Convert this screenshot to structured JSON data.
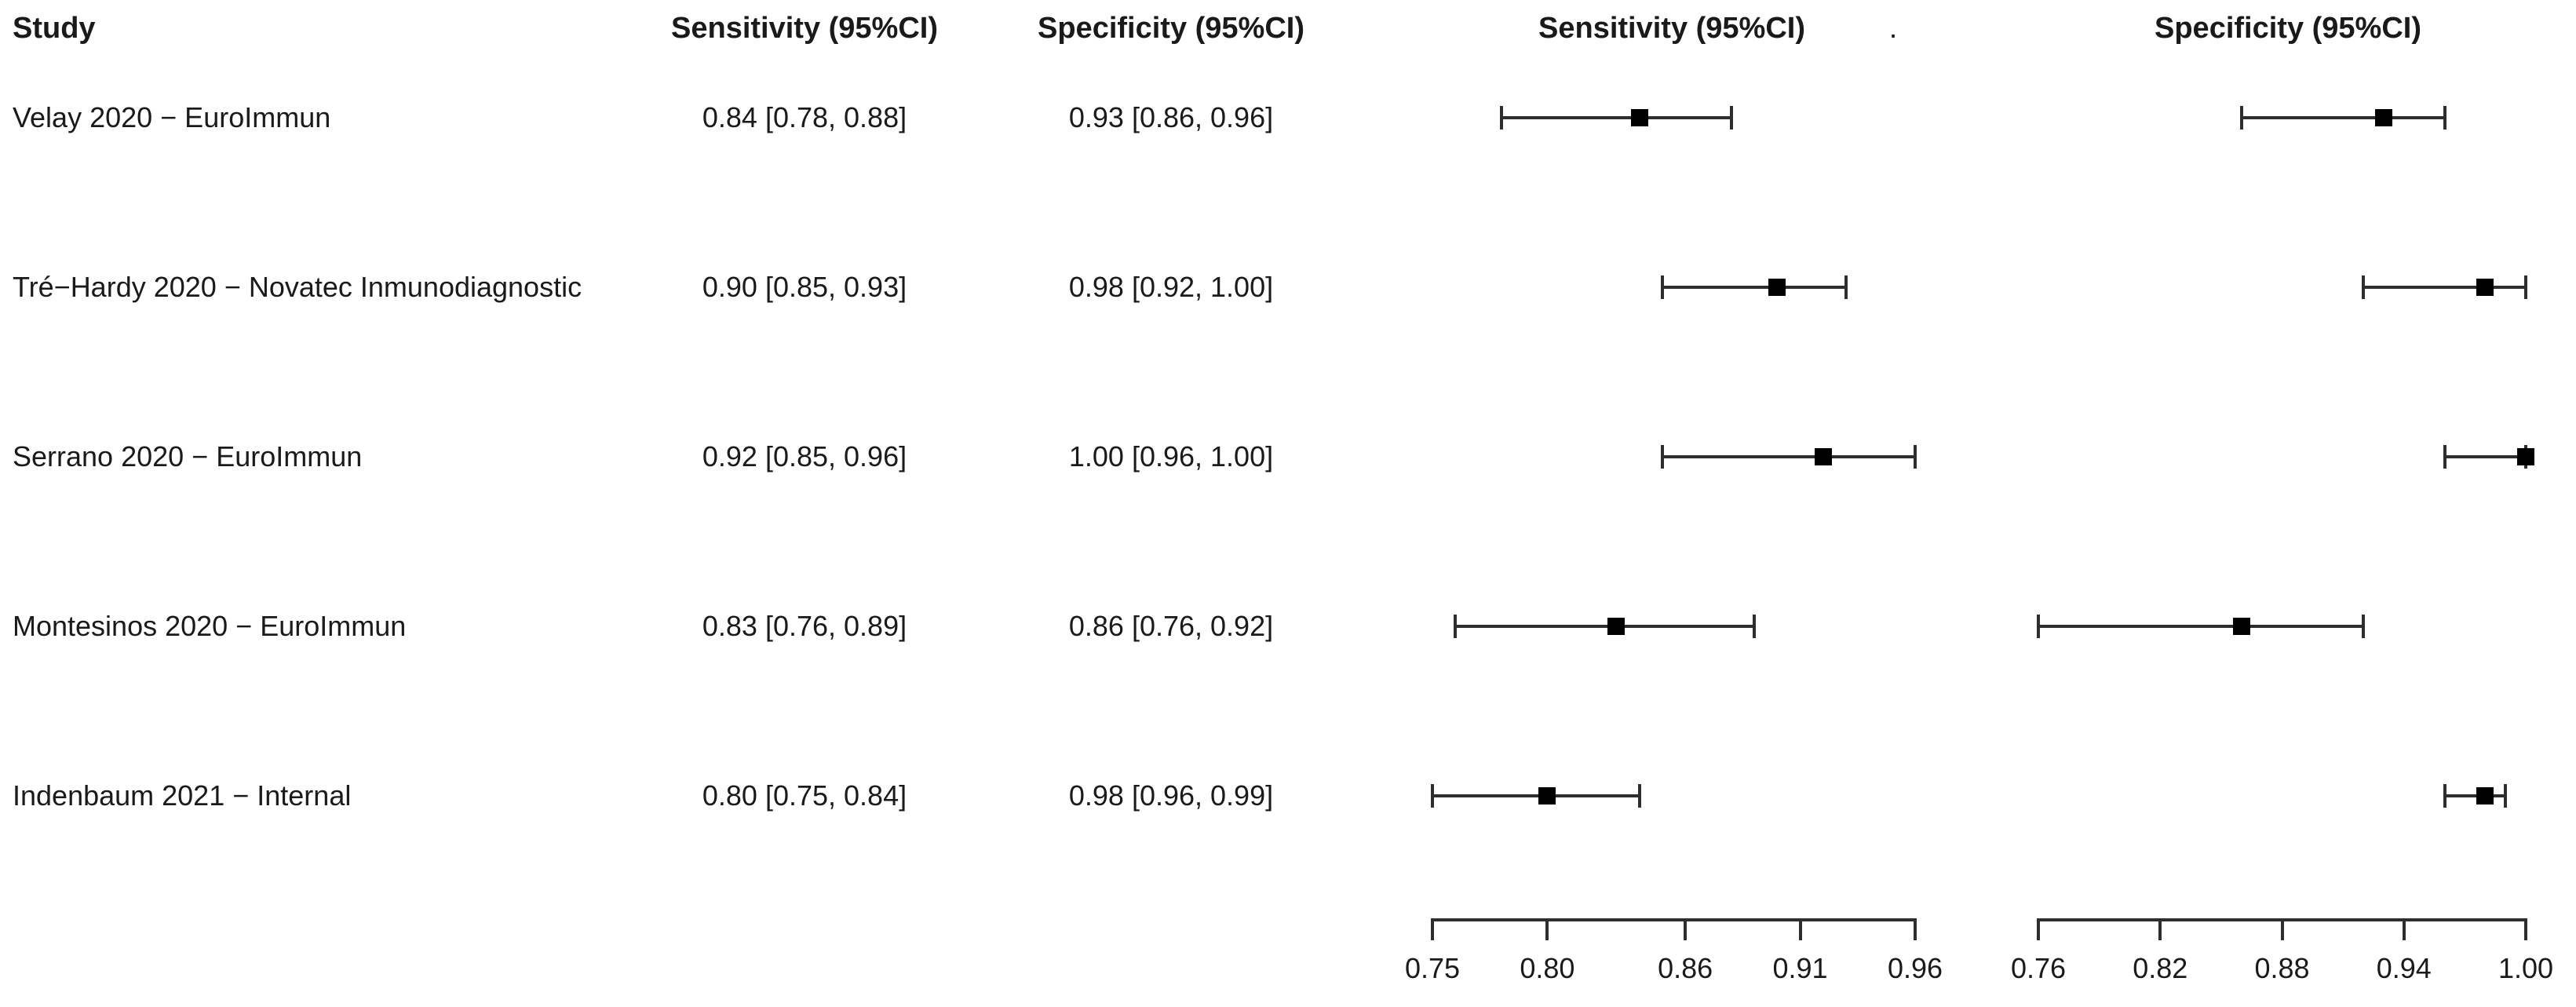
{
  "header_row": {
    "study": "Study",
    "sensitivity_col": "Sensitivity (95%CI)",
    "specificity_col": "Specificity (95%CI)",
    "sensitivity_plot": "Sensitivity (95%CI)",
    "dot": ".",
    "specificity_plot": "Specificity (95%CI)"
  },
  "colors": {
    "background": "#ffffff",
    "text": "#1a1a1a",
    "line": "#2e2e2e",
    "marker": "#000000"
  },
  "chart_data": {
    "type": "forest",
    "title": "",
    "rows": [
      {
        "study": "Velay 2020 − EuroImmun",
        "sensitivity": {
          "text": "0.84 [0.78, 0.88]",
          "est": 0.84,
          "lo": 0.78,
          "hi": 0.88
        },
        "specificity": {
          "text": "0.93 [0.86, 0.96]",
          "est": 0.93,
          "lo": 0.86,
          "hi": 0.96
        }
      },
      {
        "study": "Tré−Hardy 2020 − Novatec Inmunodiagnostic",
        "sensitivity": {
          "text": "0.90 [0.85, 0.93]",
          "est": 0.9,
          "lo": 0.85,
          "hi": 0.93
        },
        "specificity": {
          "text": "0.98 [0.92, 1.00]",
          "est": 0.98,
          "lo": 0.92,
          "hi": 1.0
        }
      },
      {
        "study": "Serrano 2020 − EuroImmun",
        "sensitivity": {
          "text": "0.92 [0.85, 0.96]",
          "est": 0.92,
          "lo": 0.85,
          "hi": 0.96
        },
        "specificity": {
          "text": "1.00 [0.96, 1.00]",
          "est": 1.0,
          "lo": 0.96,
          "hi": 1.0
        }
      },
      {
        "study": "Montesinos 2020 − EuroImmun",
        "sensitivity": {
          "text": "0.83 [0.76, 0.89]",
          "est": 0.83,
          "lo": 0.76,
          "hi": 0.89
        },
        "specificity": {
          "text": "0.86 [0.76, 0.92]",
          "est": 0.86,
          "lo": 0.76,
          "hi": 0.92
        }
      },
      {
        "study": "Indenbaum 2021 − Internal",
        "sensitivity": {
          "text": "0.80 [0.75, 0.84]",
          "est": 0.8,
          "lo": 0.75,
          "hi": 0.84
        },
        "specificity": {
          "text": "0.98 [0.96, 0.99]",
          "est": 0.98,
          "lo": 0.96,
          "hi": 0.99
        }
      }
    ],
    "axes": {
      "sensitivity": {
        "min": 0.75,
        "max": 0.96,
        "tick_values": [
          0.75,
          0.8,
          0.86,
          0.91,
          0.96
        ],
        "tick_labels": [
          "0.75",
          "0.80",
          "0.86",
          "0.91",
          "0.96"
        ]
      },
      "specificity": {
        "min": 0.76,
        "max": 1.0,
        "tick_values": [
          0.76,
          0.82,
          0.88,
          0.94,
          1.0
        ],
        "tick_labels": [
          "0.76",
          "0.82",
          "0.88",
          "0.94",
          "1.00"
        ]
      }
    },
    "legend": null,
    "grid": false
  }
}
